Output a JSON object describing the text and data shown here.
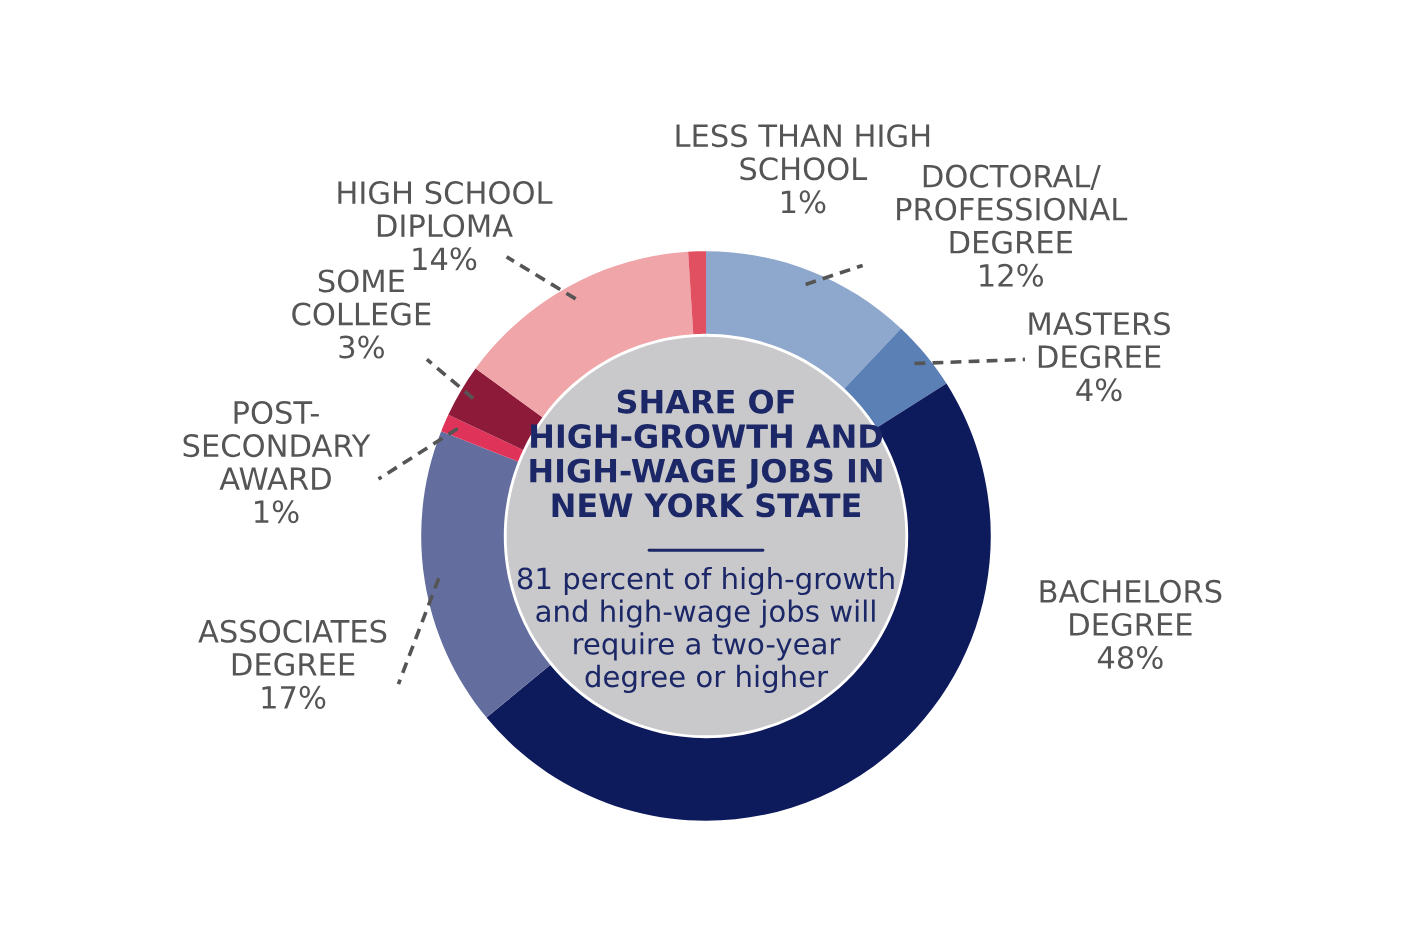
{
  "chart_data": {
    "type": "donut",
    "title": "SHARE OF\nHIGH-GROWTH AND\nHIGH-WAGE JOBS IN\nNEW YORK STATE",
    "subtitle": "81 percent of high-growth\nand high-wage jobs will\nrequire a two-year\ndegree or higher",
    "categories": [
      "DOCTORAL/\nPROFESSIONAL\nDEGREE",
      "MASTERS\nDEGREE",
      "BACHELORS\nDEGREE",
      "ASSOCIATES\nDEGREE",
      "POST-\nSECONDARY\nAWARD",
      "SOME\nCOLLEGE",
      "HIGH SCHOOL\nDIPLOMA",
      "LESS THAN HIGH\nSCHOOL"
    ],
    "values": [
      12,
      4,
      48,
      17,
      1,
      3,
      14,
      1
    ],
    "value_labels": [
      "12%",
      "4%",
      "48%",
      "17%",
      "1%",
      "3%",
      "14%",
      "1%"
    ],
    "colors": [
      "#8ea7cc",
      "#5b80b6",
      "#0d1a5c",
      "#636e9e",
      "#e0335a",
      "#8e1a3a",
      "#f0a5a8",
      "#e05060"
    ],
    "legend": false
  }
}
